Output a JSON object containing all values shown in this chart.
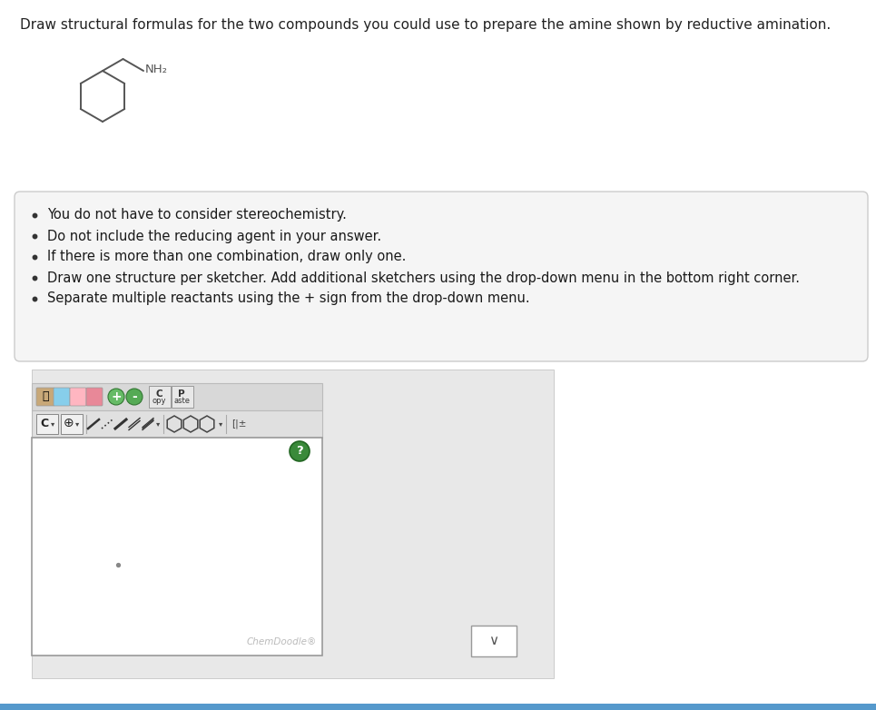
{
  "title": "Draw structural formulas for the two compounds you could use to prepare the amine shown by reductive amination.",
  "title_fontsize": 11,
  "title_color": "#222222",
  "page_bg": "#ffffff",
  "outer_bg": "#e8e8e8",
  "molecule_color": "#555555",
  "nh2_label": "NH₂",
  "bullet_points": [
    "You do not have to consider stereochemistry.",
    "Do not include the reducing agent in your answer.",
    "If there is more than one combination, draw only one.",
    "Draw one structure per sketcher. Add additional sketchers using the drop-down menu in the bottom right corner.",
    "Separate multiple reactants using the + sign from the drop-down menu."
  ],
  "bullet_fontsize": 10.5,
  "info_box_bg": "#f5f5f5",
  "info_box_edge": "#cccccc",
  "chemdoodle_box_bg": "#ffffff",
  "chemdoodle_box_edge": "#999999",
  "chemdoodle_label": "ChemDoodle®",
  "chemdoodle_label_color": "#bbbbbb",
  "toolbar_bg": "#d8d8d8",
  "toolbar_edge": "#bbbbbb",
  "toolbar2_bg": "#e0e0e0",
  "question_mark_color": "#3a8a3a",
  "question_mark_border": "#226622",
  "small_dot_color": "#888888",
  "dropdown_box_bg": "#ffffff",
  "dropdown_box_edge": "#999999",
  "bottom_bar_color": "#5599cc",
  "icon_colors": [
    "#b8860b",
    "#add8e6",
    "#ffb6c1",
    "#ff69b4",
    "#90ee90",
    "#228b22"
  ],
  "copy_paste_bg": "#e8e8e8"
}
